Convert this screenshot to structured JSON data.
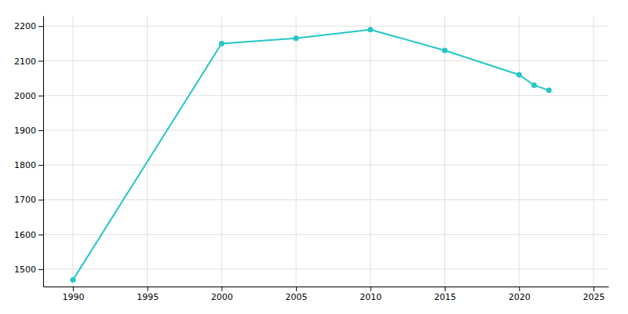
{
  "chart_data": {
    "type": "line",
    "x": [
      1990,
      2000,
      2005,
      2010,
      2015,
      2020,
      2021,
      2022
    ],
    "values": [
      1469,
      2150,
      2165,
      2190,
      2130,
      2060,
      2030,
      2015
    ],
    "color": "#26c6c6",
    "marker": "circle",
    "xlim": [
      1988,
      2026
    ],
    "ylim": [
      1450,
      2230
    ],
    "xticks": [
      1990,
      1995,
      2000,
      2005,
      2010,
      2015,
      2020,
      2025
    ],
    "yticks": [
      1500,
      1600,
      1700,
      1800,
      1900,
      2000,
      2100,
      2200
    ],
    "grid": true
  }
}
